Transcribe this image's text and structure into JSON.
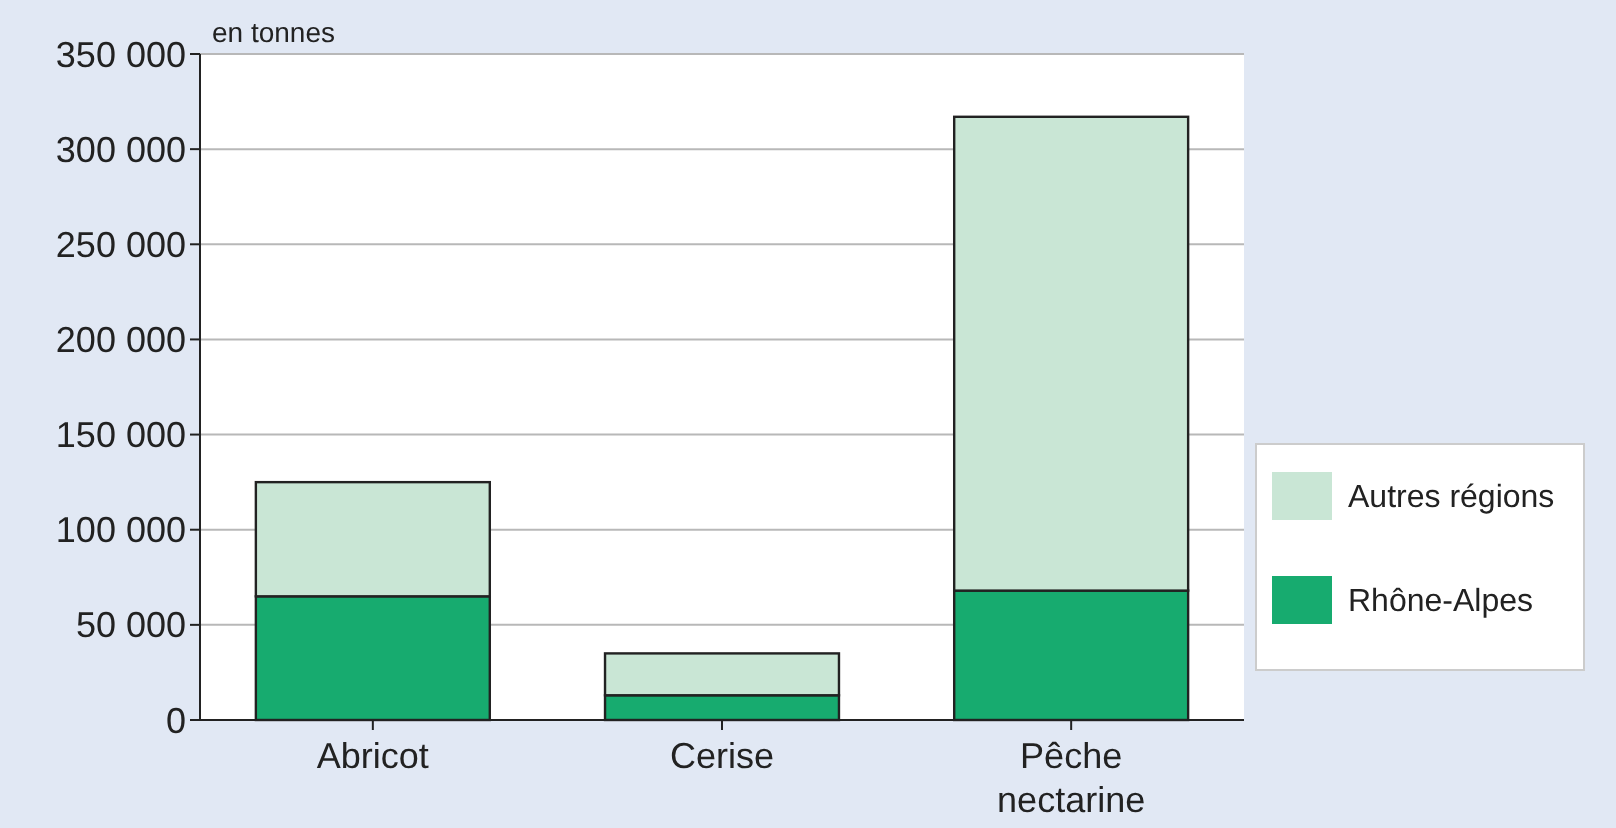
{
  "chart_data": {
    "type": "bar",
    "ylabel": "en tonnes",
    "categories": [
      "Abricot",
      "Cerise",
      "Pêche nectarine"
    ],
    "stacked": true,
    "series": [
      {
        "name": "Rhône-Alpes",
        "color": "#17ab6f",
        "values": [
          65000,
          13000,
          68000
        ]
      },
      {
        "name": "Autres régions",
        "color": "#c9e6d5",
        "values": [
          60000,
          22000,
          249000
        ]
      }
    ],
    "ylim": [
      0,
      350000
    ],
    "yticks": [
      {
        "value": 0,
        "label": "0"
      },
      {
        "value": 50000,
        "label": "50 000"
      },
      {
        "value": 100000,
        "label": "100 000"
      },
      {
        "value": 150000,
        "label": "150 000"
      },
      {
        "value": 200000,
        "label": "200 000"
      },
      {
        "value": 250000,
        "label": "250 000"
      },
      {
        "value": 300000,
        "label": "300 000"
      },
      {
        "value": 350000,
        "label": "350 000"
      }
    ],
    "grid": "y",
    "legend": "right"
  }
}
